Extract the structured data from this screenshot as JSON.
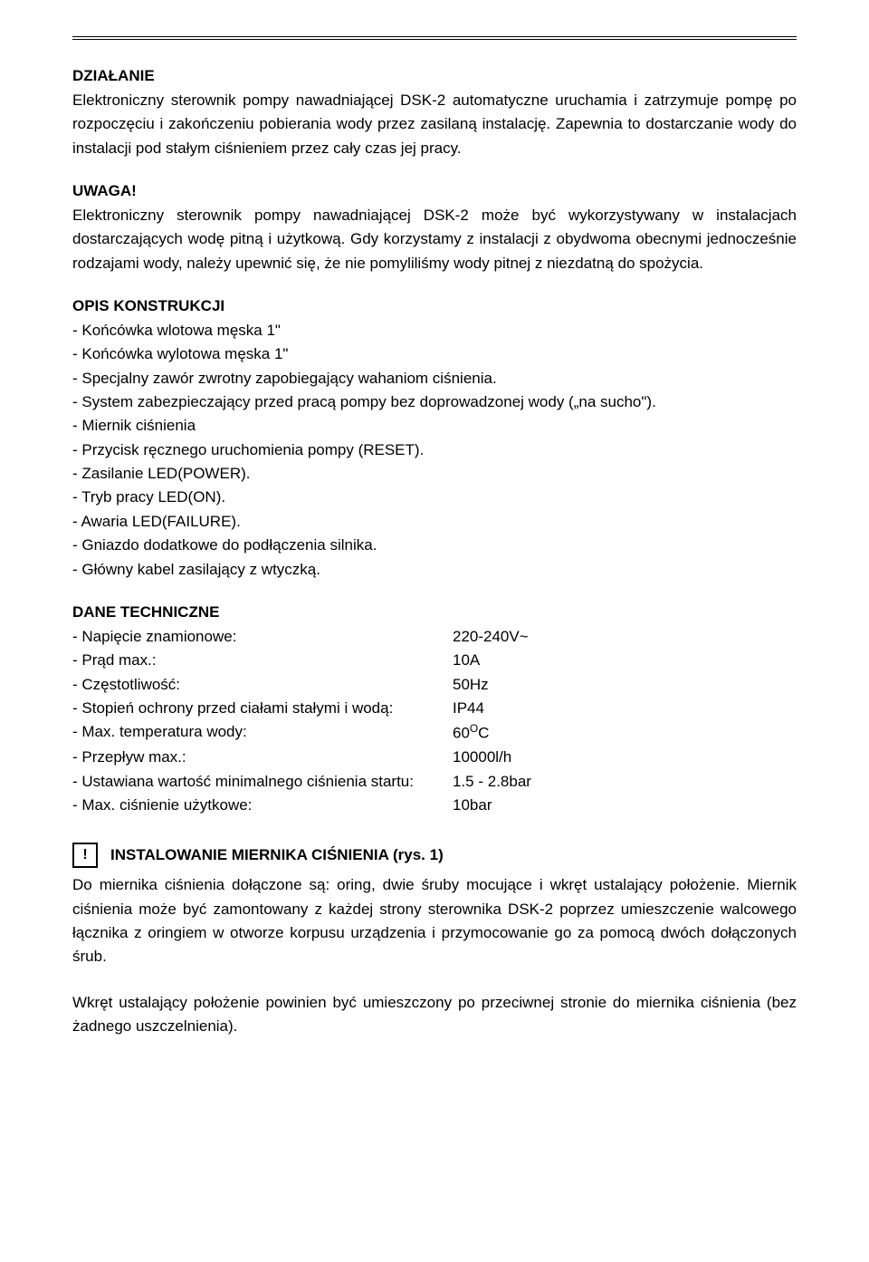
{
  "colors": {
    "text": "#000000",
    "background": "#ffffff",
    "rule": "#000000"
  },
  "typography": {
    "body_fontsize_pt": 13,
    "heading_fontsize_pt": 13,
    "font_family": "Arial",
    "line_height": 1.55
  },
  "section1": {
    "heading": "DZIAŁANIE",
    "paragraph": "Elektroniczny sterownik pompy nawadniającej DSK-2 automatyczne uruchamia i zatrzymuje pompę po rozpoczęciu i zakończeniu pobierania wody przez zasilaną instalację. Zapewnia to dostarczanie wody do instalacji pod stałym ciśnieniem przez cały czas jej pracy."
  },
  "section2": {
    "heading": "UWAGA!",
    "paragraph": "Elektroniczny sterownik pompy nawadniającej DSK-2 może być wykorzystywany w instalacjach dostarczających wodę pitną i użytkową. Gdy korzystamy z instalacji z obydwoma obecnymi jednocześnie rodzajami wody, należy upewnić się, że nie pomyliliśmy wody pitnej z niezdatną do spożycia."
  },
  "section3": {
    "heading": "OPIS KONSTRUKCJI",
    "items": [
      "- Końcówka wlotowa męska 1\"",
      "- Końcówka wylotowa męska 1\"",
      "- Specjalny zawór zwrotny zapobiegający wahaniom ciśnienia.",
      "- System zabezpieczający przed pracą pompy bez doprowadzonej wody („na sucho\").",
      "- Miernik ciśnienia",
      "- Przycisk ręcznego uruchomienia pompy (RESET).",
      "- Zasilanie LED(POWER).",
      "- Tryb pracy LED(ON).",
      "- Awaria LED(FAILURE).",
      "- Gniazdo dodatkowe do podłączenia silnika.",
      "- Główny kabel zasilający z wtyczką."
    ]
  },
  "section4": {
    "heading": "DANE TECHNICZNE",
    "rows": [
      {
        "label": "- Napięcie znamionowe:",
        "value": "220-240V~"
      },
      {
        "label": "- Prąd max.:",
        "value": "10A"
      },
      {
        "label": "- Częstotliwość:",
        "value": "50Hz"
      },
      {
        "label": "- Stopień ochrony przed ciałami stałymi i wodą:",
        "value": "IP44"
      },
      {
        "label": "- Max. temperatura wody:",
        "value_html": "60<sup>O</sup>C"
      },
      {
        "label": "- Przepływ max.:",
        "value": "10000l/h"
      },
      {
        "label": "- Ustawiana wartość minimalnego ciśnienia startu:",
        "value": "1.5 - 2.8bar"
      },
      {
        "label": "- Max. ciśnienie użytkowe:",
        "value": "10bar"
      }
    ]
  },
  "section5": {
    "icon_glyph": "!",
    "heading": "INSTALOWANIE MIERNIKA CIŚNIENIA (rys. 1)",
    "para1": "Do miernika ciśnienia dołączone są: oring, dwie śruby mocujące i wkręt ustalający położenie. Miernik ciśnienia może być zamontowany z każdej strony sterownika DSK-2 poprzez umieszczenie walcowego łącznika z oringiem w otworze korpusu urządzenia i przymocowanie go za pomocą dwóch dołączonych śrub.",
    "para2": "Wkręt ustalający położenie powinien być umieszczony po przeciwnej stronie do miernika ciśnienia (bez żadnego uszczelnienia)."
  }
}
